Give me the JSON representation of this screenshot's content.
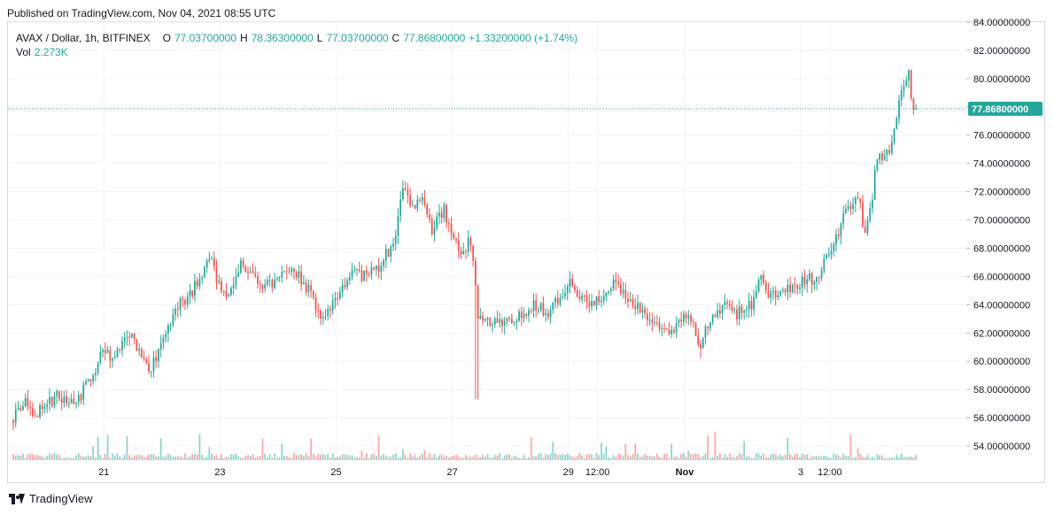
{
  "header": {
    "published": "Published on TradingView.com, Nov 04, 2021 08:55 UTC"
  },
  "legend": {
    "symbol": "AVAX / Dollar, 1h, BITFINEX",
    "open_label": "O",
    "open": "77.03700000",
    "high_label": "H",
    "high": "78.36300000",
    "low_label": "L",
    "low": "77.03700000",
    "close_label": "C",
    "close": "77.86800000",
    "change": "+1.33200000 (+1.74%)",
    "vol_label": "Vol",
    "vol": "2.273K"
  },
  "footer": {
    "brand": "TradingView"
  },
  "colors": {
    "up": "#26a69a",
    "down": "#ef5350",
    "grid": "#f0f3fa",
    "last_price": "#26a69a"
  },
  "chart_data": {
    "type": "candlestick",
    "xlabel": "",
    "ylabel": "",
    "ylim": [
      53,
      84
    ],
    "y_ticks": [
      "84.00000000",
      "82.00000000",
      "80.00000000",
      "78.00000000",
      "76.00000000",
      "74.00000000",
      "72.00000000",
      "70.00000000",
      "68.00000000",
      "66.00000000",
      "64.00000000",
      "62.00000000",
      "60.00000000",
      "58.00000000",
      "56.00000000",
      "54.00000000"
    ],
    "x_ticks": [
      {
        "label": "21",
        "day": 1.6
      },
      {
        "label": "23",
        "day": 3.6
      },
      {
        "label": "25",
        "day": 5.6
      },
      {
        "label": "27",
        "day": 7.6
      },
      {
        "label": "29",
        "day": 9.6
      },
      {
        "label": "12:00",
        "day": 10.1
      },
      {
        "label": "Nov",
        "day": 11.6
      },
      {
        "label": "3",
        "day": 13.6
      },
      {
        "label": "12:00",
        "day": 14.1
      }
    ],
    "last_price": 77.868,
    "last_price_label": "77.86800000",
    "price_path": [
      [
        0.0,
        55.8
      ],
      [
        0.2,
        57.2
      ],
      [
        0.4,
        56.3
      ],
      [
        0.8,
        57.5
      ],
      [
        1.0,
        57.2
      ],
      [
        1.2,
        57.6
      ],
      [
        1.4,
        59.0
      ],
      [
        1.6,
        61.0
      ],
      [
        1.75,
        60.0
      ],
      [
        1.95,
        61.8
      ],
      [
        2.1,
        62.0
      ],
      [
        2.2,
        60.5
      ],
      [
        2.35,
        59.5
      ],
      [
        2.5,
        60.0
      ],
      [
        2.7,
        62.0
      ],
      [
        2.85,
        64.0
      ],
      [
        3.05,
        64.5
      ],
      [
        3.25,
        66.0
      ],
      [
        3.45,
        67.2
      ],
      [
        3.6,
        65.0
      ],
      [
        3.75,
        64.8
      ],
      [
        3.95,
        67.0
      ],
      [
        4.15,
        66.0
      ],
      [
        4.4,
        65.3
      ],
      [
        4.6,
        65.5
      ],
      [
        4.8,
        66.8
      ],
      [
        4.95,
        66.2
      ],
      [
        5.15,
        64.8
      ],
      [
        5.35,
        62.5
      ],
      [
        5.5,
        63.8
      ],
      [
        5.7,
        65.5
      ],
      [
        5.9,
        66.2
      ],
      [
        6.1,
        66.0
      ],
      [
        6.3,
        66.5
      ],
      [
        6.45,
        67.5
      ],
      [
        6.6,
        68.0
      ],
      [
        6.75,
        72.5
      ],
      [
        6.9,
        71.0
      ],
      [
        7.1,
        71.5
      ],
      [
        7.25,
        69.2
      ],
      [
        7.45,
        70.8
      ],
      [
        7.6,
        68.5
      ],
      [
        7.75,
        67.8
      ],
      [
        7.9,
        68.5
      ],
      [
        8.0,
        65.5
      ],
      [
        8.05,
        63.0
      ],
      [
        8.15,
        62.5
      ],
      [
        8.3,
        63.0
      ],
      [
        8.5,
        62.6
      ],
      [
        8.7,
        63.2
      ],
      [
        8.85,
        63.5
      ],
      [
        9.05,
        64.0
      ],
      [
        9.25,
        63.4
      ],
      [
        9.45,
        64.6
      ],
      [
        9.6,
        65.5
      ],
      [
        9.75,
        64.8
      ],
      [
        9.95,
        64.2
      ],
      [
        10.15,
        64.3
      ],
      [
        10.35,
        65.6
      ],
      [
        10.55,
        64.8
      ],
      [
        10.75,
        63.8
      ],
      [
        10.95,
        63.2
      ],
      [
        11.15,
        62.6
      ],
      [
        11.35,
        62.0
      ],
      [
        11.55,
        63.2
      ],
      [
        11.7,
        63.0
      ],
      [
        11.85,
        61.0
      ],
      [
        12.0,
        62.5
      ],
      [
        12.15,
        63.5
      ],
      [
        12.3,
        64.0
      ],
      [
        12.45,
        63.3
      ],
      [
        12.65,
        63.7
      ],
      [
        12.8,
        64.2
      ],
      [
        12.9,
        66.2
      ],
      [
        13.05,
        64.8
      ],
      [
        13.25,
        64.8
      ],
      [
        13.45,
        65.2
      ],
      [
        13.6,
        65.5
      ],
      [
        13.75,
        66.0
      ],
      [
        13.9,
        65.5
      ],
      [
        14.05,
        67.6
      ],
      [
        14.2,
        68.4
      ],
      [
        14.35,
        70.5
      ],
      [
        14.5,
        71.0
      ],
      [
        14.6,
        71.8
      ],
      [
        14.7,
        69.0
      ],
      [
        14.8,
        70.8
      ],
      [
        14.9,
        74.0
      ],
      [
        15.0,
        74.5
      ],
      [
        15.1,
        74.8
      ],
      [
        15.2,
        76.0
      ],
      [
        15.3,
        78.6
      ],
      [
        15.4,
        79.6
      ],
      [
        15.45,
        80.5
      ],
      [
        15.5,
        79.0
      ],
      [
        15.55,
        77.5
      ],
      [
        15.6,
        77.87
      ]
    ]
  }
}
